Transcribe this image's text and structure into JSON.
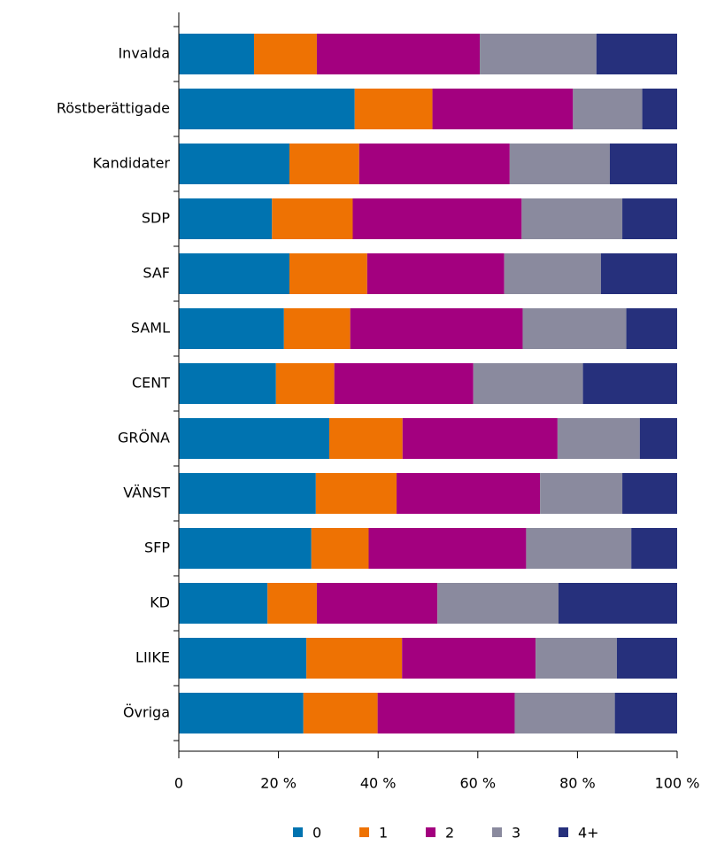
{
  "chart_data": {
    "type": "stacked_barh",
    "categories": [
      "Invalda",
      "Röstberättigade",
      "Kandidater",
      "SDP",
      "SAF",
      "SAML",
      "CENT",
      "GRÖNA",
      "VÄNST",
      "SFP",
      "KD",
      "LIIKE",
      "Övriga"
    ],
    "series": [
      {
        "name": "0",
        "color": "#0073b0",
        "values": [
          15.1,
          35.3,
          22.2,
          18.7,
          22.2,
          21.1,
          19.5,
          30.2,
          27.5,
          26.6,
          17.8,
          25.6,
          25.0
        ]
      },
      {
        "name": "1",
        "color": "#ee7203",
        "values": [
          12.6,
          15.6,
          14.0,
          16.2,
          15.6,
          13.3,
          11.7,
          14.7,
          16.2,
          11.5,
          9.9,
          19.2,
          14.9
        ]
      },
      {
        "name": "2",
        "color": "#a3007f",
        "values": [
          32.7,
          28.2,
          30.2,
          33.9,
          27.5,
          34.6,
          27.9,
          31.1,
          28.8,
          31.6,
          24.2,
          26.8,
          27.5
        ]
      },
      {
        "name": "3",
        "color": "#8a8a9e",
        "values": [
          23.4,
          13.9,
          20.1,
          20.2,
          19.4,
          20.8,
          22.0,
          16.5,
          16.5,
          21.1,
          24.3,
          16.3,
          20.1
        ]
      },
      {
        "name": "4+",
        "color": "#26307c",
        "values": [
          16.2,
          7.0,
          13.5,
          11.0,
          15.3,
          10.2,
          18.9,
          7.5,
          11.0,
          9.2,
          23.8,
          12.1,
          12.5
        ]
      }
    ],
    "xlim": [
      0,
      100
    ],
    "xticks": [
      0,
      {
        "value": 20,
        "label": "20 %"
      },
      {
        "value": 40,
        "label": "40 %"
      },
      {
        "value": 60,
        "label": "60 %"
      },
      {
        "value": 80,
        "label": "80 %"
      },
      {
        "value": 100,
        "label": "100 %"
      }
    ],
    "legend": "bottom"
  }
}
